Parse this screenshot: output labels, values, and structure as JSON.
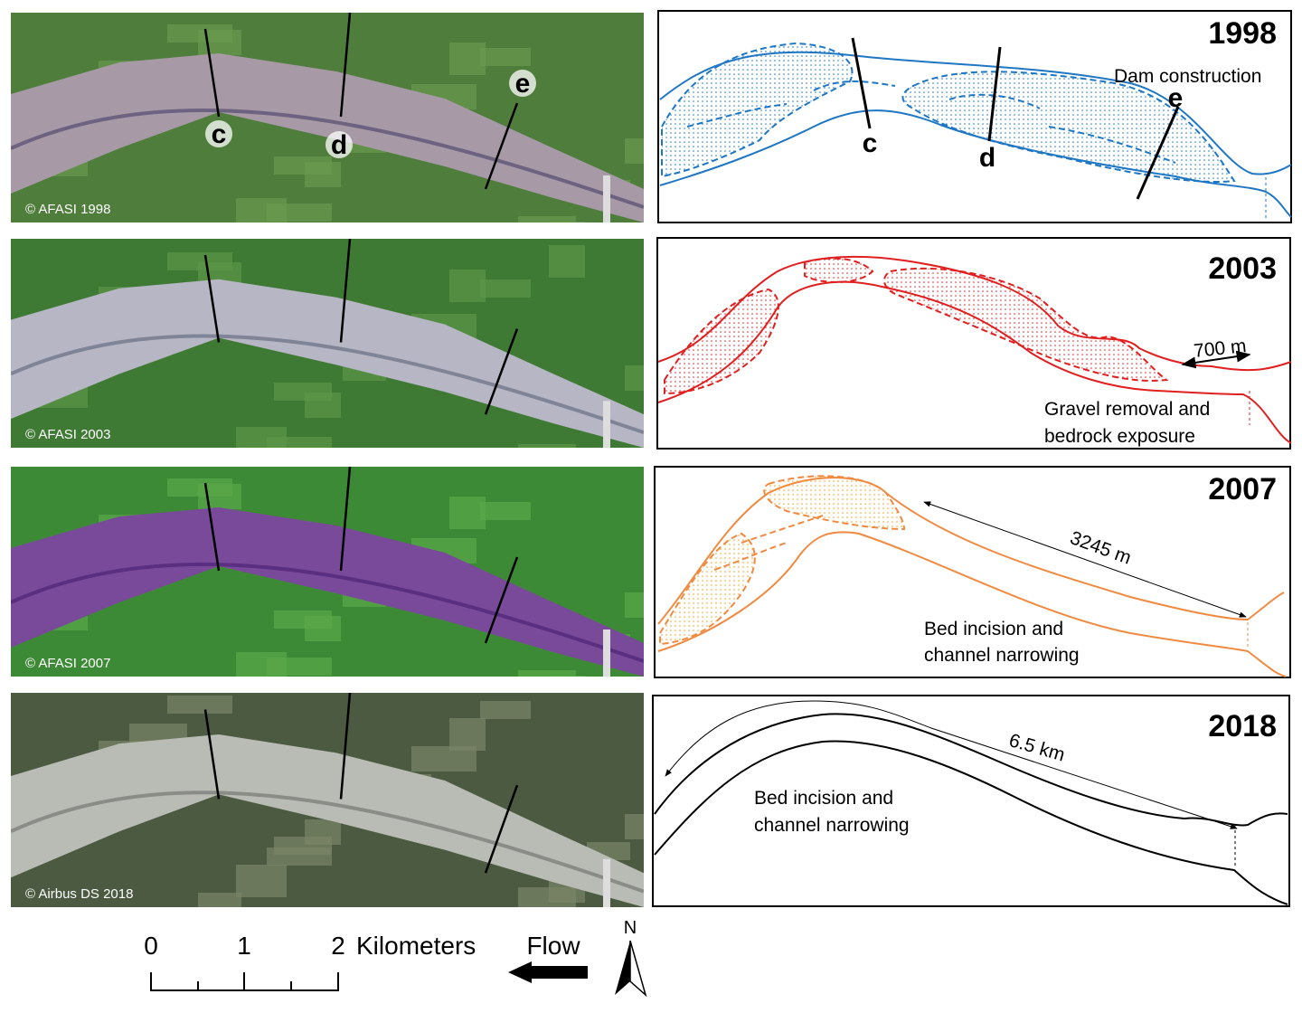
{
  "panels": [
    {
      "credit": "© AFASI 1998",
      "year": "1998",
      "photo_sections": [
        "c",
        "d",
        "e"
      ],
      "sketch_sections": [
        "c",
        "d",
        "e"
      ],
      "annotation": "Dam construction"
    },
    {
      "credit": "© AFASI 2003",
      "year": "2003",
      "distance": "700 m",
      "annotation_lines": [
        "Gravel removal and",
        "bedrock exposure"
      ]
    },
    {
      "credit": "© AFASI 2007",
      "year": "2007",
      "distance": "3245 m",
      "annotation_lines": [
        "Bed incision and",
        "channel narrowing"
      ]
    },
    {
      "credit": "© Airbus DS 2018",
      "year": "2018",
      "distance": "6.5 km",
      "annotation_lines": [
        "Bed incision and",
        "channel narrowing"
      ]
    }
  ],
  "scale_bar": {
    "ticks": [
      "0",
      "1",
      "2"
    ],
    "unit": "Kilometers"
  },
  "flow": "Flow",
  "north": "N"
}
